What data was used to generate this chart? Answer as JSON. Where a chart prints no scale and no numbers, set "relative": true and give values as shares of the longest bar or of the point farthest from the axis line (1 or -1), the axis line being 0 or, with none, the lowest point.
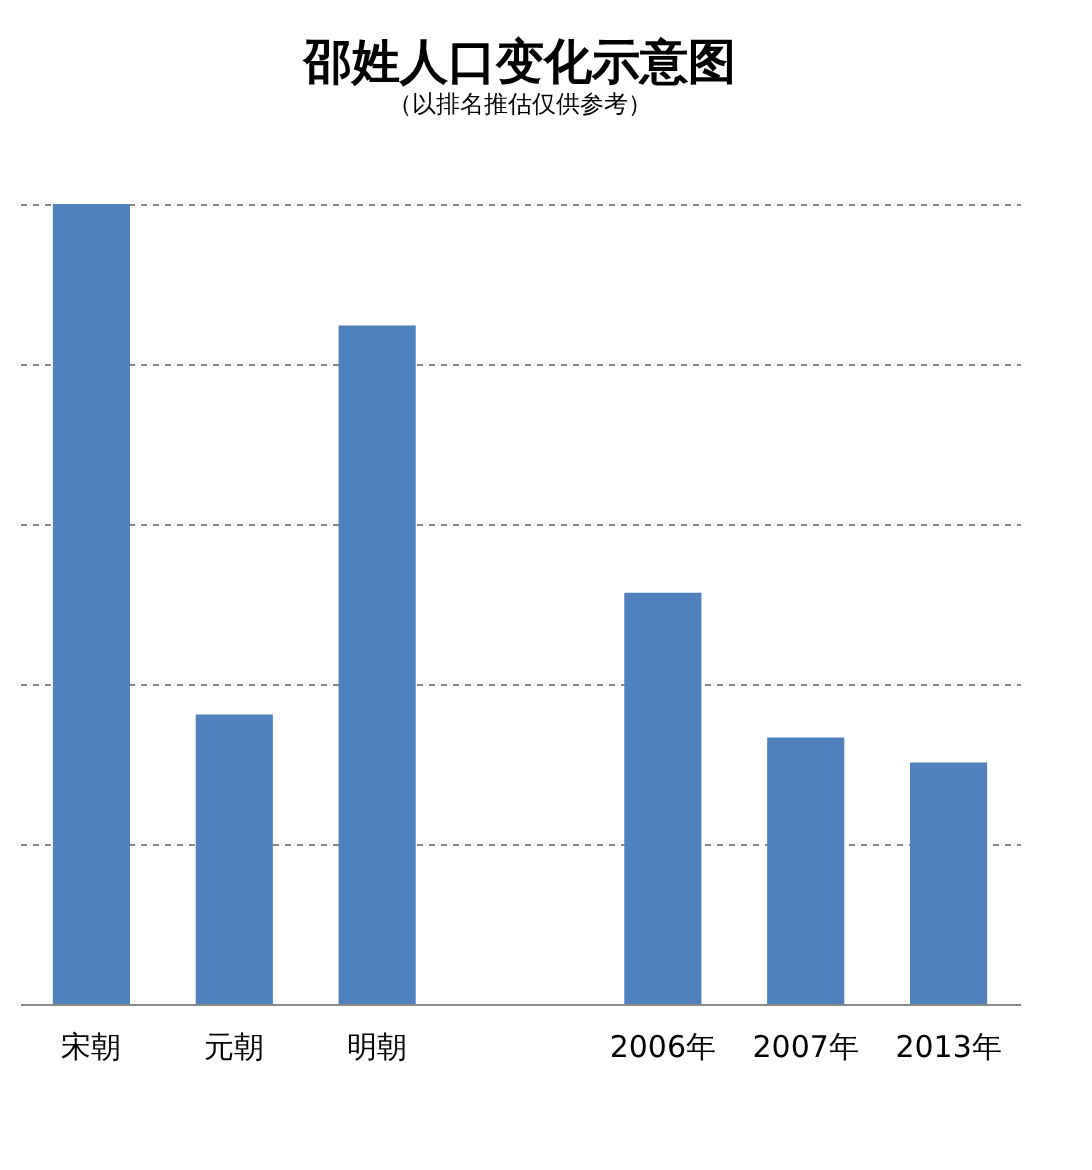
{
  "chart_data": {
    "type": "bar",
    "title": "邵姓人口变化示意图",
    "subtitle": "（以排名推估仅供参考）",
    "categories": [
      "宋朝",
      "元朝",
      "明朝",
      null,
      "2006年",
      "2007年",
      "2013年"
    ],
    "values": [
      1,
      0.362,
      0.848,
      null,
      0.514,
      0.333,
      0.302
    ],
    "color": "#4f81bd",
    "relative": true,
    "grid": "y"
  }
}
